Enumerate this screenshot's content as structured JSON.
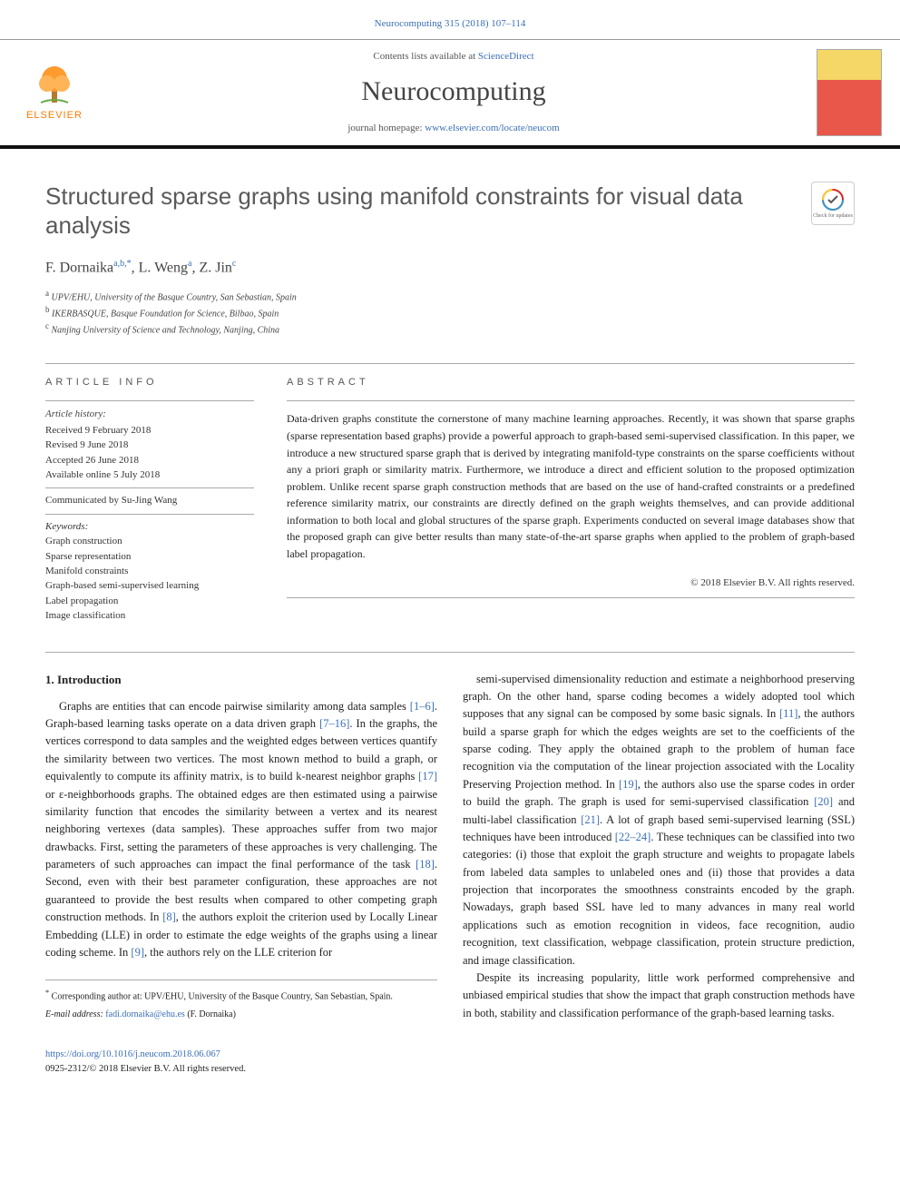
{
  "header": {
    "citation": "Neurocomputing 315 (2018) 107–114",
    "contents_prefix": "Contents lists available at ",
    "contents_link": "ScienceDirect",
    "journal": "Neurocomputing",
    "homepage_prefix": "journal homepage: ",
    "homepage_link": "www.elsevier.com/locate/neucom",
    "publisher_logo_text": "ELSEVIER"
  },
  "title": "Structured sparse graphs using manifold constraints for visual data analysis",
  "check_badge_label": "Check for updates",
  "authors_html": "F. Dornaika",
  "authors": [
    {
      "name": "F. Dornaika",
      "sup": "a,b,*"
    },
    {
      "name": "L. Weng",
      "sup": "a"
    },
    {
      "name": "Z. Jin",
      "sup": "c"
    }
  ],
  "affiliations": [
    {
      "sup": "a",
      "text": "UPV/EHU, University of the Basque Country, San Sebastian, Spain"
    },
    {
      "sup": "b",
      "text": "IKERBASQUE, Basque Foundation for Science, Bilbao, Spain"
    },
    {
      "sup": "c",
      "text": "Nanjing University of Science and Technology, Nanjing, China"
    }
  ],
  "info": {
    "heading": "article info",
    "history_label": "Article history:",
    "received": "Received 9 February 2018",
    "revised": "Revised 9 June 2018",
    "accepted": "Accepted 26 June 2018",
    "online": "Available online 5 July 2018",
    "communicated": "Communicated by Su-Jing Wang",
    "keywords_label": "Keywords:",
    "keywords": [
      "Graph construction",
      "Sparse representation",
      "Manifold constraints",
      "Graph-based semi-supervised learning",
      "Label propagation",
      "Image classification"
    ]
  },
  "abstract": {
    "heading": "abstract",
    "text": "Data-driven graphs constitute the cornerstone of many machine learning approaches. Recently, it was shown that sparse graphs (sparse representation based graphs) provide a powerful approach to graph-based semi-supervised classification. In this paper, we introduce a new structured sparse graph that is derived by integrating manifold-type constraints on the sparse coefficients without any a priori graph or similarity matrix. Furthermore, we introduce a direct and efficient solution to the proposed optimization problem. Unlike recent sparse graph construction methods that are based on the use of hand-crafted constraints or a predefined reference similarity matrix, our constraints are directly defined on the graph weights themselves, and can provide additional information to both local and global structures of the sparse graph. Experiments conducted on several image databases show that the proposed graph can give better results than many state-of-the-art sparse graphs when applied to the problem of graph-based label propagation.",
    "copyright": "© 2018 Elsevier B.V. All rights reserved."
  },
  "section1": {
    "heading": "1. Introduction",
    "col1_p1": "Graphs are entities that can encode pairwise similarity among data samples [1–6]. Graph-based learning tasks operate on a data driven graph [7–16]. In the graphs, the vertices correspond to data samples and the weighted edges between vertices quantify the similarity between two vertices. The most known method to build a graph, or equivalently to compute its affinity matrix, is to build k-nearest neighbor graphs [17] or ε-neighborhoods graphs. The obtained edges are then estimated using a pairwise similarity function that encodes the similarity between a vertex and its nearest neighboring vertexes (data samples). These approaches suffer from two major drawbacks. First, setting the parameters of these approaches is very challenging. The parameters of such approaches can impact the final performance of the task [18]. Second, even with their best parameter configuration, these approaches are not guaranteed to provide the best results when compared to other competing graph construction methods. In [8], the authors exploit the criterion used by Locally Linear Embedding (LLE) in order to estimate the edge weights of the graphs using a linear coding scheme. In [9], the authors rely on the LLE criterion for",
    "col2_p1": "semi-supervised dimensionality reduction and estimate a neighborhood preserving graph. On the other hand, sparse coding becomes a widely adopted tool which supposes that any signal can be composed by some basic signals. In [11], the authors build a sparse graph for which the edges weights are set to the coefficients of the sparse coding. They apply the obtained graph to the problem of human face recognition via the computation of the linear projection associated with the Locality Preserving Projection method. In [19], the authors also use the sparse codes in order to build the graph. The graph is used for semi-supervised classification [20] and multi-label classification [21]. A lot of graph based semi-supervised learning (SSL) techniques have been introduced [22–24]. These techniques can be classified into two categories: (i) those that exploit the graph structure and weights to propagate labels from labeled data samples to unlabeled ones and (ii) those that provides a data projection that incorporates the smoothness constraints encoded by the graph. Nowadays, graph based SSL have led to many advances in many real world applications such as emotion recognition in videos, face recognition, audio recognition, text classification, webpage classification, protein structure prediction, and image classification.",
    "col2_p2": "Despite its increasing popularity, little work performed comprehensive and unbiased empirical studies that show the impact that graph construction methods have in both, stability and classification performance of the graph-based learning tasks."
  },
  "footer": {
    "corr_marker": "*",
    "corr_text": "Corresponding author at: UPV/EHU, University of the Basque Country, San Sebastian, Spain.",
    "email_label": "E-mail address: ",
    "email": "fadi.dornaika@ehu.es",
    "email_owner": " (F. Dornaika)",
    "doi": "https://doi.org/10.1016/j.neucom.2018.06.067",
    "issn_line": "0925-2312/© 2018 Elsevier B.V. All rights reserved."
  },
  "colors": {
    "link": "#3a6fb7",
    "elsevier_orange": "#ff7a00",
    "rule_dark": "#111111"
  }
}
